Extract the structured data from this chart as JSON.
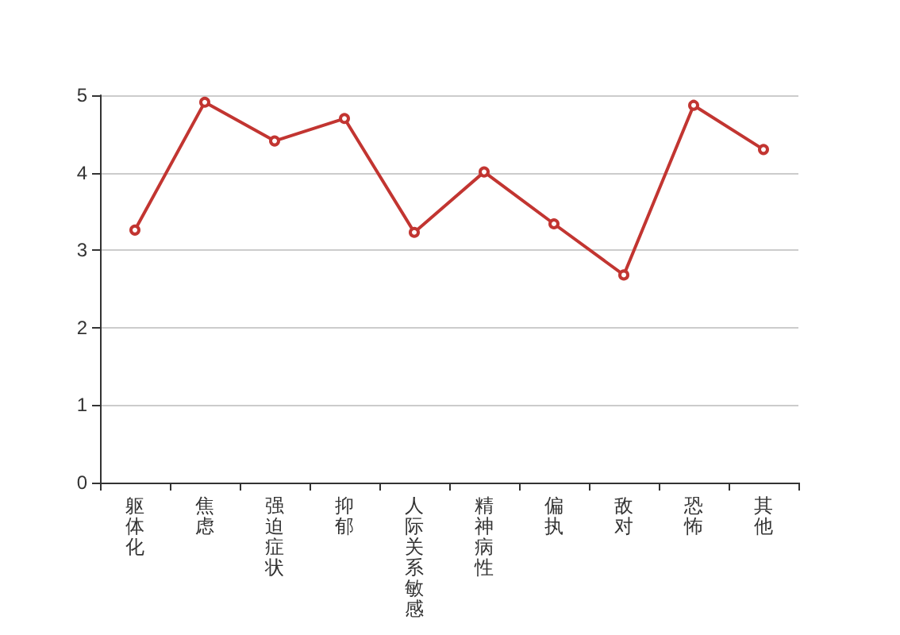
{
  "chart_data": {
    "type": "line",
    "categories": [
      "躯体化",
      "焦虑",
      "强迫症状",
      "抑郁",
      "人际关系敏感",
      "精神病性",
      "偏执",
      "敌对",
      "恐怖",
      "其他"
    ],
    "series": [
      {
        "color": "#c23531",
        "values": [
          3.26,
          4.91,
          4.41,
          4.7,
          3.23,
          4.01,
          3.34,
          2.68,
          4.87,
          4.3
        ]
      }
    ],
    "ylim": [
      0,
      5
    ],
    "yticks": [
      0,
      1,
      2,
      3,
      4,
      5
    ],
    "grid": "y",
    "marker": "circle",
    "line_style": "solid"
  }
}
